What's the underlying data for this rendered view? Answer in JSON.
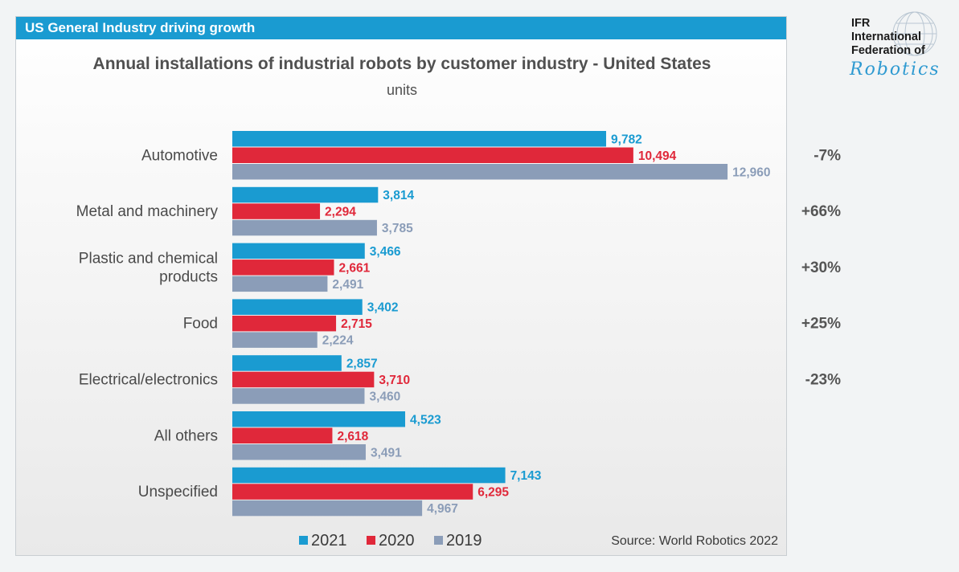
{
  "header": {
    "title": "US General Industry driving growth"
  },
  "logo": {
    "line1": "IFR",
    "line2": "International",
    "line3": "Federation of",
    "line4": "Robotics"
  },
  "chart_data": {
    "type": "bar",
    "orientation": "horizontal",
    "title": "Annual installations of industrial robots by customer industry - United States",
    "subtitle": "units",
    "categories": [
      "Automotive",
      "Metal and machinery",
      "Plastic and chemical products",
      "Food",
      "Electrical/electronics",
      "All others",
      "Unspecified"
    ],
    "series": [
      {
        "name": "2021",
        "color": "#1a9bd1",
        "values": [
          9782,
          3814,
          3466,
          3402,
          2857,
          4523,
          7143
        ],
        "labels": [
          "9,782",
          "3,814",
          "3,466",
          "3,402",
          "2,857",
          "4,523",
          "7,143"
        ]
      },
      {
        "name": "2020",
        "color": "#e0283a",
        "values": [
          10494,
          2294,
          2661,
          2715,
          3710,
          2618,
          6295
        ],
        "labels": [
          "10,494",
          "2,294",
          "2,661",
          "2,715",
          "3,710",
          "2,618",
          "6,295"
        ]
      },
      {
        "name": "2019",
        "color": "#8b9db8",
        "values": [
          12960,
          3785,
          2491,
          2224,
          3460,
          3491,
          4967
        ],
        "labels": [
          "12,960",
          "3,785",
          "2,491",
          "2,224",
          "3,460",
          "3,491",
          "4,967"
        ]
      }
    ],
    "changes": [
      "-7%",
      "+66%",
      "+30%",
      "+25%",
      "-23%",
      "",
      ""
    ],
    "xlim": [
      0,
      13000
    ],
    "grid": false,
    "legend_position": "bottom",
    "source": "Source: World Robotics 2022"
  }
}
